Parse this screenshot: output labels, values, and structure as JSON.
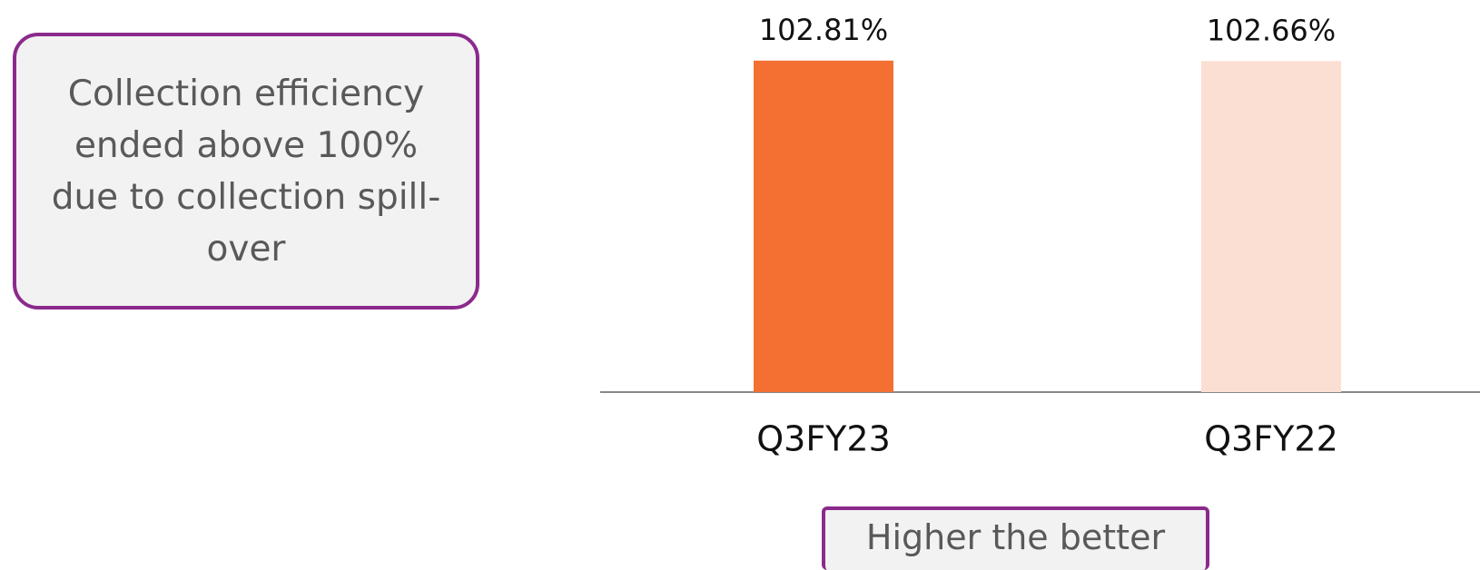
{
  "chart_data": {
    "type": "bar",
    "categories": [
      "Q3FY23",
      "Q3FY22"
    ],
    "series": [
      {
        "values": [
          102.81,
          102.66
        ],
        "value_labels": [
          "102.81%",
          "102.66%"
        ],
        "colors": [
          "#f37032",
          "#fcdfd3"
        ]
      }
    ],
    "ylim": [
      0,
      105
    ],
    "annotations": [
      "Collection efficiency ended above 100% due to collection spill-over",
      "Higher the better"
    ]
  }
}
